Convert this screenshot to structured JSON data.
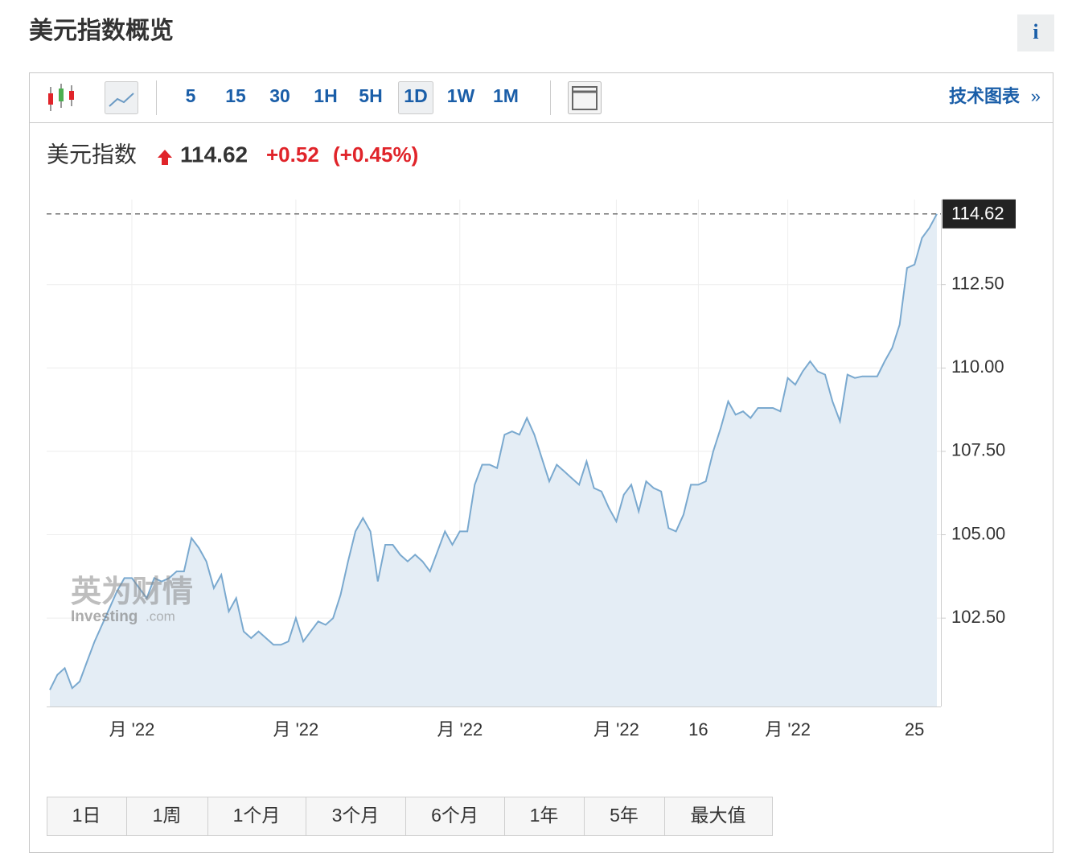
{
  "header": {
    "title": "美元指数概览",
    "info": "i"
  },
  "toolbar": {
    "intervals": [
      "5",
      "15",
      "30",
      "1H",
      "5H",
      "1D",
      "1W",
      "1M"
    ],
    "selected": "1D",
    "link": "技术图表",
    "link_arrow": "»"
  },
  "quote": {
    "name": "美元指数",
    "price": "114.62",
    "change": "+0.52",
    "change_pct": "(+0.45%)"
  },
  "watermark": {
    "cn": "英为财情",
    "en": "Investing",
    "suffix": ".com"
  },
  "chart_data": {
    "type": "area",
    "categories": [
      null,
      null,
      null,
      null,
      null,
      null,
      null,
      null,
      null,
      null,
      null,
      "月 '22",
      null,
      null,
      null,
      null,
      null,
      null,
      null,
      null,
      null,
      null,
      null,
      null,
      null,
      null,
      null,
      null,
      null,
      null,
      null,
      null,
      null,
      "月 '22",
      null,
      null,
      null,
      null,
      null,
      null,
      null,
      null,
      null,
      null,
      null,
      null,
      null,
      null,
      null,
      null,
      null,
      null,
      null,
      null,
      null,
      "月 '22",
      null,
      null,
      null,
      null,
      null,
      null,
      null,
      null,
      null,
      null,
      null,
      null,
      null,
      null,
      null,
      null,
      null,
      null,
      null,
      null,
      "月 '22",
      null,
      null,
      null,
      null,
      null,
      null,
      null,
      null,
      null,
      null,
      "16",
      null,
      null,
      null,
      null,
      null,
      null,
      null,
      null,
      null,
      null,
      null,
      "月 '22",
      null,
      null,
      null,
      null,
      null,
      null,
      null,
      null,
      null,
      null,
      null,
      null,
      null,
      null,
      null,
      null,
      "25",
      null,
      null,
      null
    ],
    "values": [
      100.35,
      100.8,
      101.0,
      100.4,
      100.6,
      101.2,
      101.8,
      102.3,
      102.8,
      103.3,
      103.7,
      103.7,
      103.4,
      103.1,
      103.7,
      103.6,
      103.7,
      103.9,
      103.9,
      104.9,
      104.6,
      104.2,
      103.4,
      103.8,
      102.7,
      103.1,
      102.1,
      101.9,
      102.1,
      101.9,
      101.7,
      101.7,
      101.8,
      102.5,
      101.8,
      102.1,
      102.4,
      102.3,
      102.5,
      103.2,
      104.2,
      105.1,
      105.5,
      105.1,
      103.6,
      104.7,
      104.7,
      104.4,
      104.2,
      104.4,
      104.2,
      103.9,
      104.5,
      105.1,
      104.7,
      105.1,
      105.1,
      106.5,
      107.1,
      107.1,
      107.0,
      108.0,
      108.1,
      108.0,
      108.5,
      108.0,
      107.3,
      106.6,
      107.1,
      106.9,
      106.7,
      106.5,
      107.2,
      106.4,
      106.3,
      105.8,
      105.4,
      106.2,
      106.5,
      105.7,
      106.6,
      106.4,
      106.3,
      105.2,
      105.1,
      105.6,
      106.5,
      106.5,
      106.6,
      107.5,
      108.2,
      109.0,
      108.6,
      108.7,
      108.5,
      108.8,
      108.8,
      108.8,
      108.7,
      109.7,
      109.5,
      109.9,
      110.2,
      109.9,
      109.8,
      109.0,
      108.4,
      109.8,
      109.7,
      109.75,
      109.75,
      109.75,
      110.2,
      110.6,
      111.3,
      113.0,
      113.1,
      113.9,
      114.2,
      114.62
    ],
    "color": "#7aa9cf",
    "area_color": "#e4edf5",
    "ylim": [
      99.85,
      115.05
    ],
    "yticks": [
      {
        "value": 102.5,
        "label": "102.50"
      },
      {
        "value": 105,
        "label": "105.00"
      },
      {
        "value": 107.5,
        "label": "107.50"
      },
      {
        "value": 110,
        "label": "110.00"
      },
      {
        "value": 112.5,
        "label": "112.50"
      }
    ],
    "grid": true
  },
  "ranges": [
    "1日",
    "1周",
    "1个月",
    "3个月",
    "6个月",
    "1年",
    "5年",
    "最大值"
  ]
}
